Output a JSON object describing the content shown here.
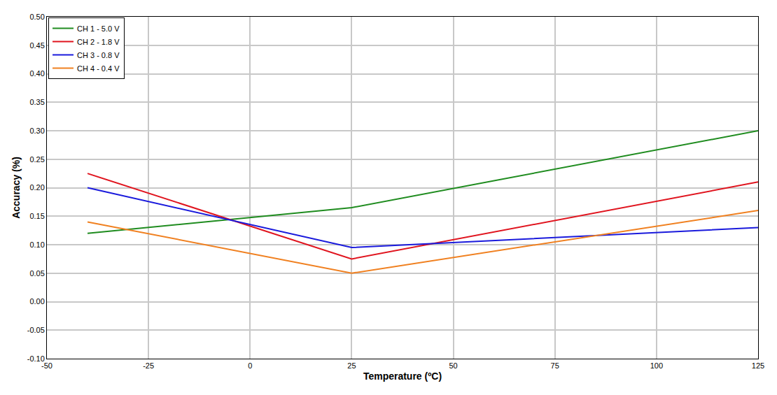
{
  "chart_data": {
    "type": "line",
    "xlabel": "Temperature (ºC)",
    "ylabel": "Accuracy (%)",
    "x": [
      -40,
      25,
      125
    ],
    "series": [
      {
        "name": "CH 1 - 5.0 V",
        "color": "#1f8c1f",
        "values": [
          0.12,
          0.165,
          0.3
        ]
      },
      {
        "name": "CH 2 - 1.8 V",
        "color": "#e0141e",
        "values": [
          0.225,
          0.075,
          0.21
        ]
      },
      {
        "name": "CH 3 - 0.8 V",
        "color": "#1a1adc",
        "values": [
          0.2,
          0.095,
          0.13
        ]
      },
      {
        "name": "CH 4 - 0.4 V",
        "color": "#f08020",
        "values": [
          0.14,
          0.05,
          0.16
        ]
      }
    ],
    "xlim": [
      -50,
      125
    ],
    "xticks": [
      -50,
      -25,
      0,
      25,
      50,
      75,
      100,
      125
    ],
    "ylim": [
      -0.1,
      0.5
    ],
    "yticks": [
      {
        "value": -0.1,
        "label": "-0.10"
      },
      -0.05,
      {
        "value": 0,
        "label": "0.00"
      },
      0.05,
      {
        "value": 0.1,
        "label": "0.10"
      },
      0.15,
      {
        "value": 0.2,
        "label": "0.20"
      },
      0.25,
      {
        "value": 0.3,
        "label": "0.30"
      },
      0.35,
      {
        "value": 0.4,
        "label": "0.40"
      },
      0.45,
      {
        "value": 0.5,
        "label": "0.50"
      }
    ],
    "grid": true,
    "legend": "top-left"
  }
}
